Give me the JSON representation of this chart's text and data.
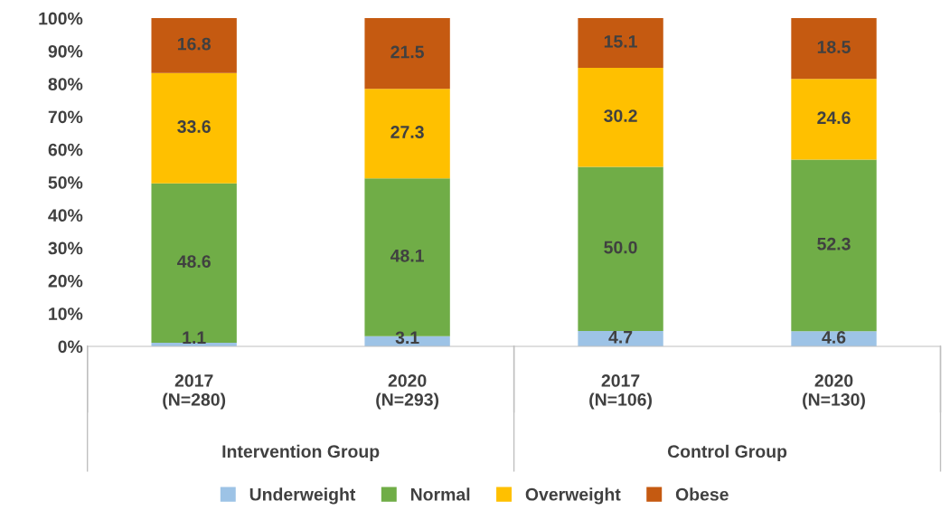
{
  "chart_data": {
    "type": "bar",
    "stacked": true,
    "grid": false,
    "legend": "bottom",
    "categories": [
      "2017\n(N=280)",
      "2020\n(N=293)",
      "2017\n(N=106)",
      "2020\n(N=130)"
    ],
    "annotations": [
      "Intervention Group",
      "Control Group"
    ],
    "ylim": [
      0,
      100
    ],
    "yticks": [
      {
        "value": 0,
        "label": "0%"
      },
      {
        "value": 10,
        "label": "10%"
      },
      {
        "value": 20,
        "label": "20%"
      },
      {
        "value": 30,
        "label": "30%"
      },
      {
        "value": 40,
        "label": "40%"
      },
      {
        "value": 50,
        "label": "50%"
      },
      {
        "value": 60,
        "label": "60%"
      },
      {
        "value": 70,
        "label": "70%"
      },
      {
        "value": 80,
        "label": "80%"
      },
      {
        "value": 90,
        "label": "90%"
      },
      {
        "value": 100,
        "label": "100%"
      }
    ],
    "series": [
      {
        "name": "Underweight",
        "color": "#9dc3e6",
        "values": [
          1.1,
          3.1,
          4.7,
          4.6
        ],
        "value_labels": [
          "1.1",
          "3.1",
          "4.7",
          "4.6"
        ]
      },
      {
        "name": "Normal",
        "color": "#70ad47",
        "values": [
          48.6,
          48.1,
          50.0,
          52.3
        ],
        "value_labels": [
          "48.6",
          "48.1",
          "50.0",
          "52.3"
        ]
      },
      {
        "name": "Overweight",
        "color": "#ffc000",
        "values": [
          33.6,
          27.3,
          30.2,
          24.6
        ],
        "value_labels": [
          "33.6",
          "27.3",
          "30.2",
          "24.6"
        ]
      },
      {
        "name": "Obese",
        "color": "#c55a11",
        "values": [
          16.8,
          21.5,
          15.1,
          18.5
        ],
        "value_labels": [
          "16.8",
          "21.5",
          "15.1",
          "18.5"
        ]
      }
    ]
  }
}
